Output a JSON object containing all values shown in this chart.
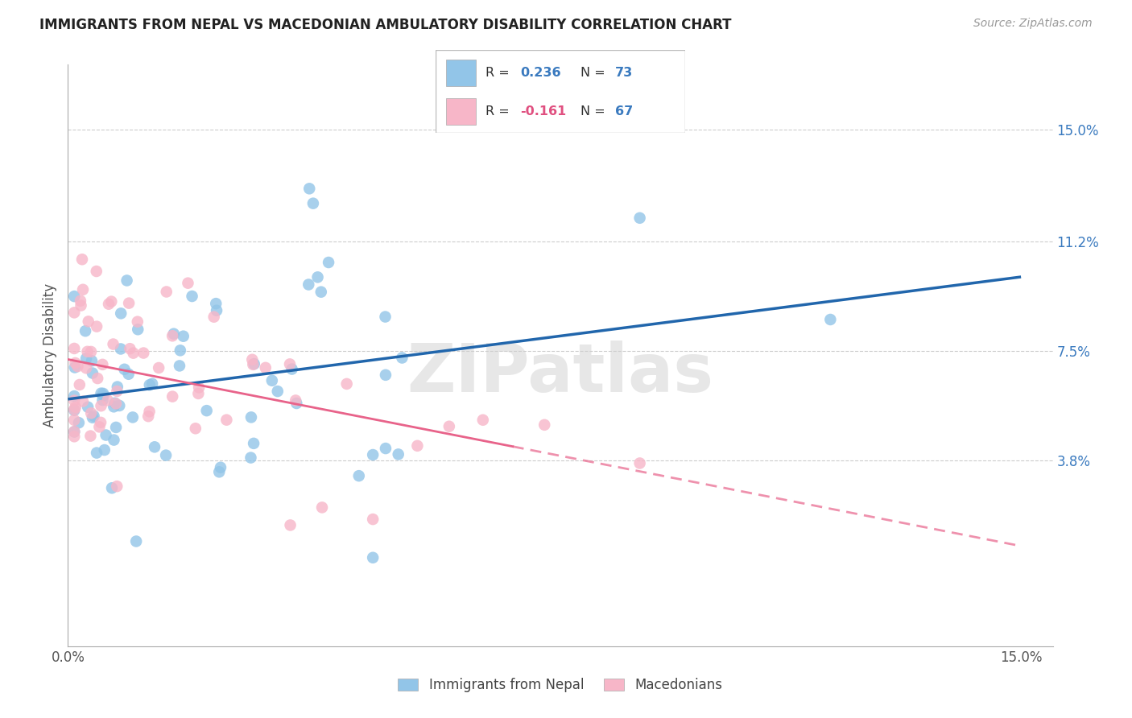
{
  "title": "IMMIGRANTS FROM NEPAL VS MACEDONIAN AMBULATORY DISABILITY CORRELATION CHART",
  "source": "Source: ZipAtlas.com",
  "ylabel": "Ambulatory Disability",
  "legend1_label": "Immigrants from Nepal",
  "legend2_label": "Macedonians",
  "color_blue": "#92c5e8",
  "color_pink": "#f7b6c8",
  "line_blue": "#2166ac",
  "line_pink": "#e8638a",
  "watermark": "ZIPatlas",
  "xmin": 0.0,
  "xmax": 0.155,
  "ymin": -0.025,
  "ymax": 0.172,
  "ytick_vals": [
    0.038,
    0.075,
    0.112,
    0.15
  ],
  "ytick_labels": [
    "3.8%",
    "7.5%",
    "11.2%",
    "15.0%"
  ],
  "r_blue": "0.236",
  "n_blue": "73",
  "r_pink": "-0.161",
  "n_pink": "67",
  "r_color_blue": "#3a7abf",
  "n_color": "#3a7abf",
  "r_color_pink": "#e05080",
  "text_dark": "#333333"
}
